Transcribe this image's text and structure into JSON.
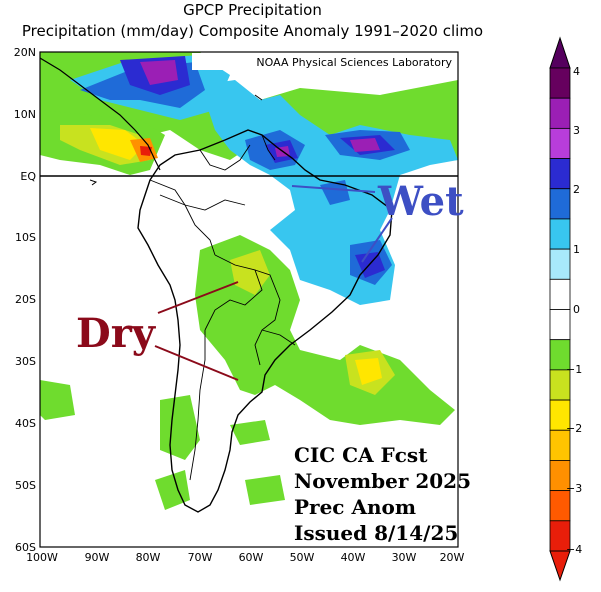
{
  "title": {
    "line1": "GPCP Precipitation",
    "line2": "Precipitation (mm/day) Composite Anomaly 1991–2020 climo"
  },
  "credit": "NOAA Physical Sciences Laboratory",
  "map": {
    "lat_labels": [
      "20N",
      "10N",
      "EQ",
      "10S",
      "20S",
      "30S",
      "40S",
      "50S",
      "60S"
    ],
    "lon_labels": [
      "100W",
      "90W",
      "80W",
      "70W",
      "60W",
      "50W",
      "40W",
      "30W",
      "20W"
    ],
    "equator_line": true
  },
  "annotations": {
    "wet": "Wet",
    "dry": "Dry",
    "wet_color": "#3d4fc4",
    "dry_color": "#8b0a1a"
  },
  "forecast_box": {
    "line1": "CIC CA Fcst",
    "line2": "November 2025",
    "line3": "Prec Anom",
    "line4": "Issued 8/14/25"
  },
  "colorbar": {
    "labels": [
      "4",
      "3",
      "2",
      "1",
      "0",
      "−1",
      "−2",
      "−3",
      "−4"
    ],
    "colors": [
      "#66005e",
      "#9b1fb5",
      "#b83dda",
      "#2b2bd1",
      "#1f6bd8",
      "#38c6ef",
      "#a8e9fb",
      "#ffffff",
      "#ffffff",
      "#6fdc2e",
      "#c8e21f",
      "#ffe600",
      "#ffc400",
      "#ff9000",
      "#ff5a00",
      "#e81e0a"
    ]
  }
}
